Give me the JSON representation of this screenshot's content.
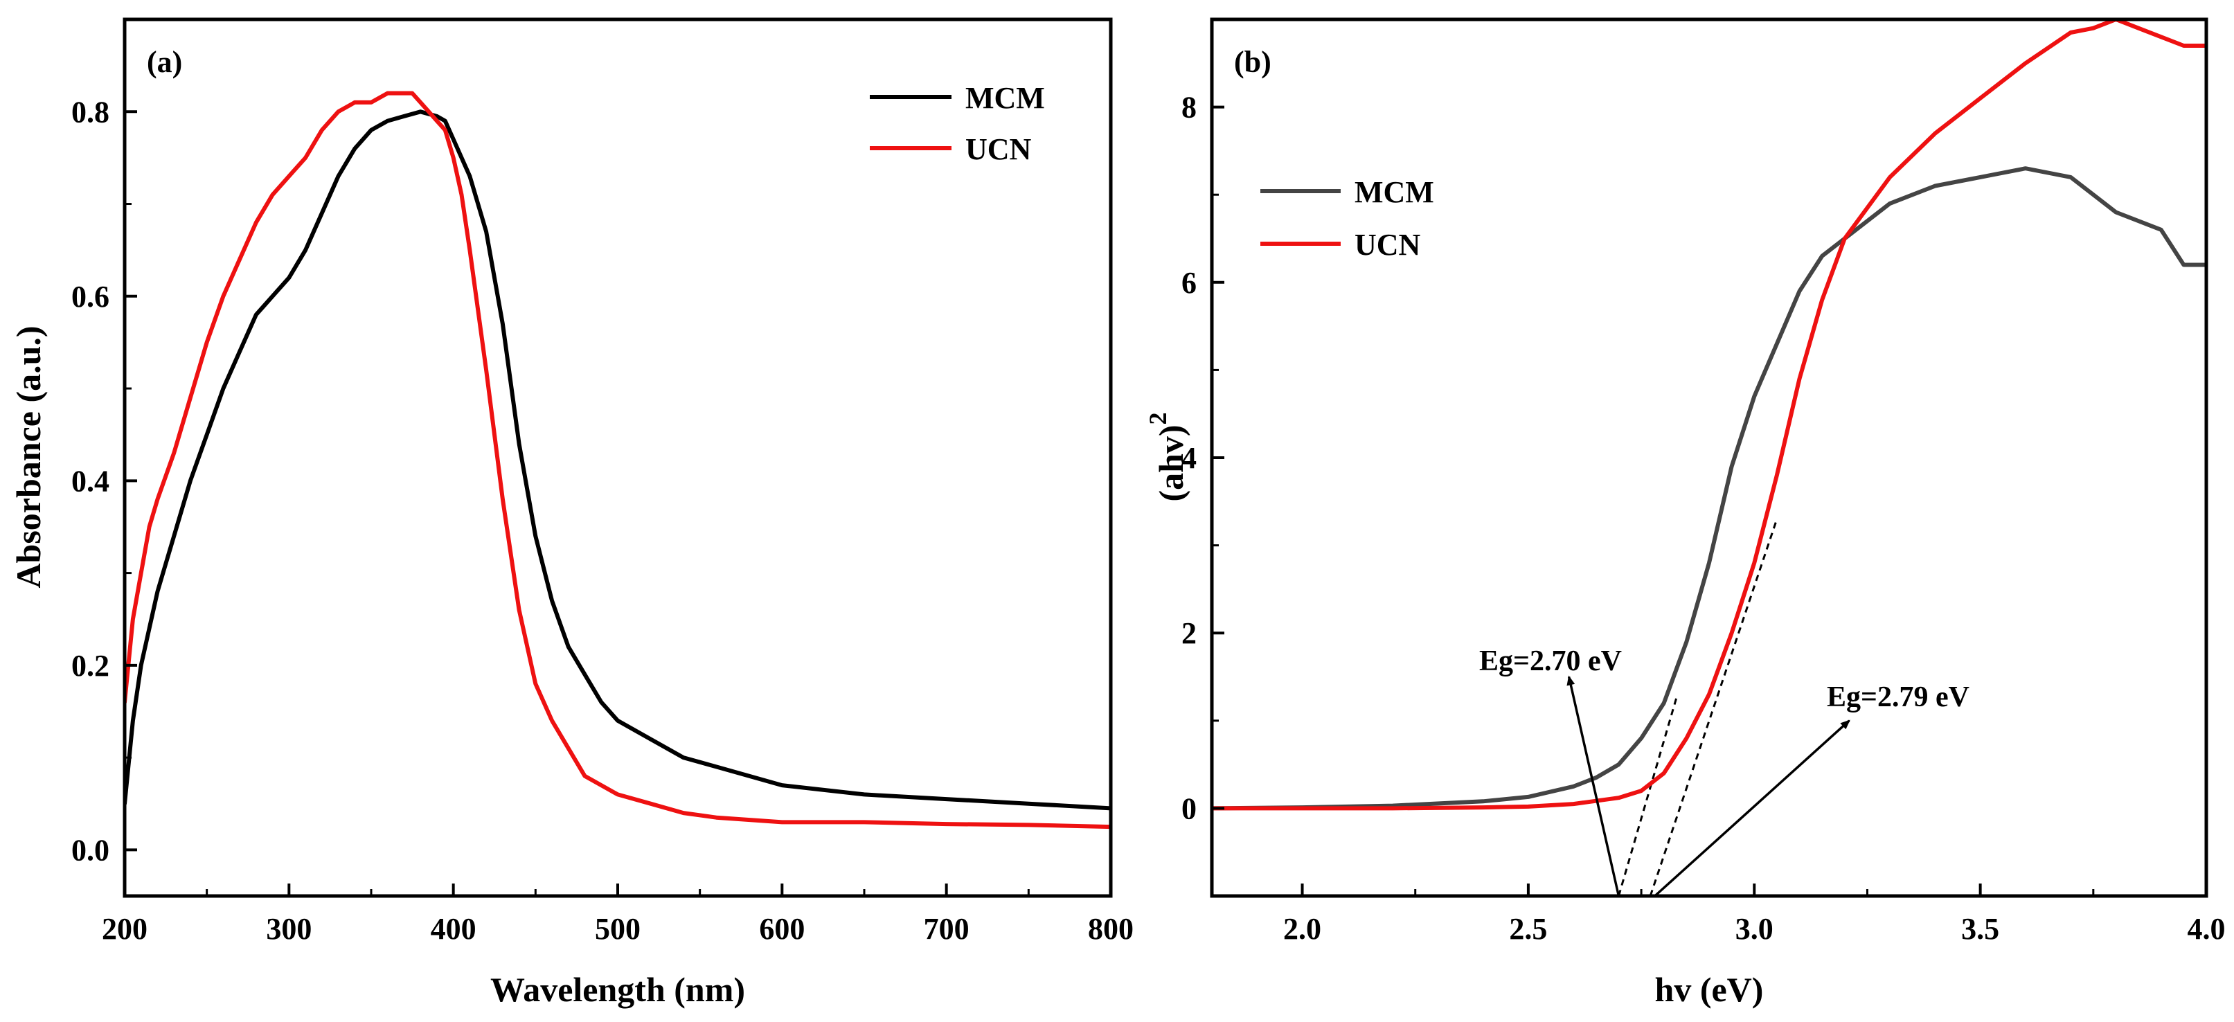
{
  "colors": {
    "mcm_a": "#000000",
    "ucn": "#ee1111",
    "mcm_b": "#444444",
    "axis": "#000000"
  },
  "chart_data": [
    {
      "type": "line",
      "panel_label": "(a)",
      "xlabel": "Wavelength (nm)",
      "ylabel": "Absorbance (a.u.)",
      "xlim": [
        200,
        800
      ],
      "ylim": [
        -0.05,
        0.9
      ],
      "xticks": [
        200,
        300,
        400,
        500,
        600,
        700,
        800
      ],
      "xtick_labels": [
        "200",
        "300",
        "400",
        "500",
        "600",
        "700",
        "800"
      ],
      "yticks": [
        0.0,
        0.2,
        0.4,
        0.6,
        0.8
      ],
      "ytick_labels": [
        "0.0",
        "0.2",
        "0.4",
        "0.6",
        "0.8"
      ],
      "legend": {
        "placement": "top-right",
        "entries": [
          "MCM",
          "UCN"
        ]
      },
      "series": [
        {
          "name": "MCM",
          "x": [
            200,
            205,
            210,
            215,
            220,
            225,
            230,
            240,
            250,
            260,
            270,
            280,
            290,
            300,
            310,
            320,
            330,
            340,
            350,
            360,
            370,
            380,
            390,
            395,
            400,
            410,
            420,
            430,
            440,
            450,
            460,
            470,
            480,
            490,
            500,
            520,
            540,
            560,
            580,
            600,
            650,
            700,
            750,
            800
          ],
          "y": [
            0.05,
            0.14,
            0.2,
            0.24,
            0.28,
            0.31,
            0.34,
            0.4,
            0.45,
            0.5,
            0.54,
            0.58,
            0.6,
            0.62,
            0.65,
            0.69,
            0.73,
            0.76,
            0.78,
            0.79,
            0.795,
            0.8,
            0.795,
            0.79,
            0.77,
            0.73,
            0.67,
            0.57,
            0.44,
            0.34,
            0.27,
            0.22,
            0.19,
            0.16,
            0.14,
            0.12,
            0.1,
            0.09,
            0.08,
            0.07,
            0.06,
            0.055,
            0.05,
            0.045
          ]
        },
        {
          "name": "UCN",
          "x": [
            200,
            205,
            210,
            215,
            220,
            230,
            240,
            250,
            260,
            270,
            280,
            290,
            300,
            310,
            320,
            330,
            340,
            350,
            360,
            370,
            375,
            380,
            385,
            390,
            395,
            400,
            405,
            410,
            420,
            430,
            440,
            450,
            460,
            470,
            480,
            500,
            520,
            540,
            560,
            600,
            650,
            700,
            750,
            800
          ],
          "y": [
            0.16,
            0.25,
            0.3,
            0.35,
            0.38,
            0.43,
            0.49,
            0.55,
            0.6,
            0.64,
            0.68,
            0.71,
            0.73,
            0.75,
            0.78,
            0.8,
            0.81,
            0.81,
            0.82,
            0.82,
            0.82,
            0.81,
            0.8,
            0.79,
            0.78,
            0.75,
            0.71,
            0.65,
            0.52,
            0.38,
            0.26,
            0.18,
            0.14,
            0.11,
            0.08,
            0.06,
            0.05,
            0.04,
            0.035,
            0.03,
            0.03,
            0.028,
            0.027,
            0.025
          ]
        }
      ]
    },
    {
      "type": "line",
      "panel_label": "(b)",
      "xlabel": "hv (eV)",
      "ylabel_main": "(ahv)",
      "ylabel_sup": "2",
      "xlim": [
        1.8,
        4.0
      ],
      "ylim": [
        -1,
        9
      ],
      "xticks": [
        2.0,
        2.5,
        3.0,
        3.5,
        4.0
      ],
      "xtick_labels": [
        "2.0",
        "2.5",
        "3.0",
        "3.5",
        "4.0"
      ],
      "yticks": [
        0,
        2,
        4,
        6,
        8
      ],
      "ytick_labels": [
        "0",
        "2",
        "4",
        "6",
        "8"
      ],
      "legend": {
        "placement": "upper-left",
        "entries": [
          "MCM",
          "UCN"
        ]
      },
      "series": [
        {
          "name": "MCM",
          "x": [
            1.8,
            2.0,
            2.2,
            2.4,
            2.5,
            2.6,
            2.65,
            2.7,
            2.75,
            2.8,
            2.85,
            2.9,
            2.95,
            3.0,
            3.05,
            3.1,
            3.15,
            3.2,
            3.3,
            3.4,
            3.5,
            3.6,
            3.7,
            3.8,
            3.9,
            3.95,
            4.0
          ],
          "y": [
            0.0,
            0.01,
            0.03,
            0.08,
            0.13,
            0.25,
            0.35,
            0.5,
            0.8,
            1.2,
            1.9,
            2.8,
            3.9,
            4.7,
            5.3,
            5.9,
            6.3,
            6.5,
            6.9,
            7.1,
            7.2,
            7.3,
            7.2,
            6.8,
            6.6,
            6.2,
            6.2
          ]
        },
        {
          "name": "UCN",
          "x": [
            1.8,
            2.0,
            2.2,
            2.4,
            2.5,
            2.6,
            2.7,
            2.75,
            2.8,
            2.85,
            2.9,
            2.95,
            3.0,
            3.05,
            3.1,
            3.15,
            3.2,
            3.3,
            3.4,
            3.5,
            3.6,
            3.7,
            3.75,
            3.8,
            3.85,
            3.9,
            3.95,
            4.0
          ],
          "y": [
            0.0,
            0.0,
            0.0,
            0.01,
            0.02,
            0.05,
            0.12,
            0.2,
            0.4,
            0.8,
            1.3,
            2.0,
            2.8,
            3.8,
            4.9,
            5.8,
            6.5,
            7.2,
            7.7,
            8.1,
            8.5,
            8.85,
            8.9,
            9.0,
            8.9,
            8.8,
            8.7,
            8.7
          ]
        }
      ],
      "tangents": [
        {
          "from": [
            2.7,
            -1.0
          ],
          "to": [
            2.83,
            1.3
          ]
        },
        {
          "from": [
            2.77,
            -1.0
          ],
          "to": [
            3.05,
            3.3
          ]
        }
      ],
      "annotations": [
        {
          "text": "Eg=2.70 eV",
          "value": 2.7,
          "arrow_from": [
            2.7,
            -1.0
          ],
          "arrow_to": [
            2.59,
            1.5
          ]
        },
        {
          "text": "Eg=2.79 eV",
          "value": 2.79,
          "arrow_from": [
            2.78,
            -1.0
          ],
          "arrow_to": [
            3.21,
            1.0
          ]
        }
      ]
    }
  ]
}
